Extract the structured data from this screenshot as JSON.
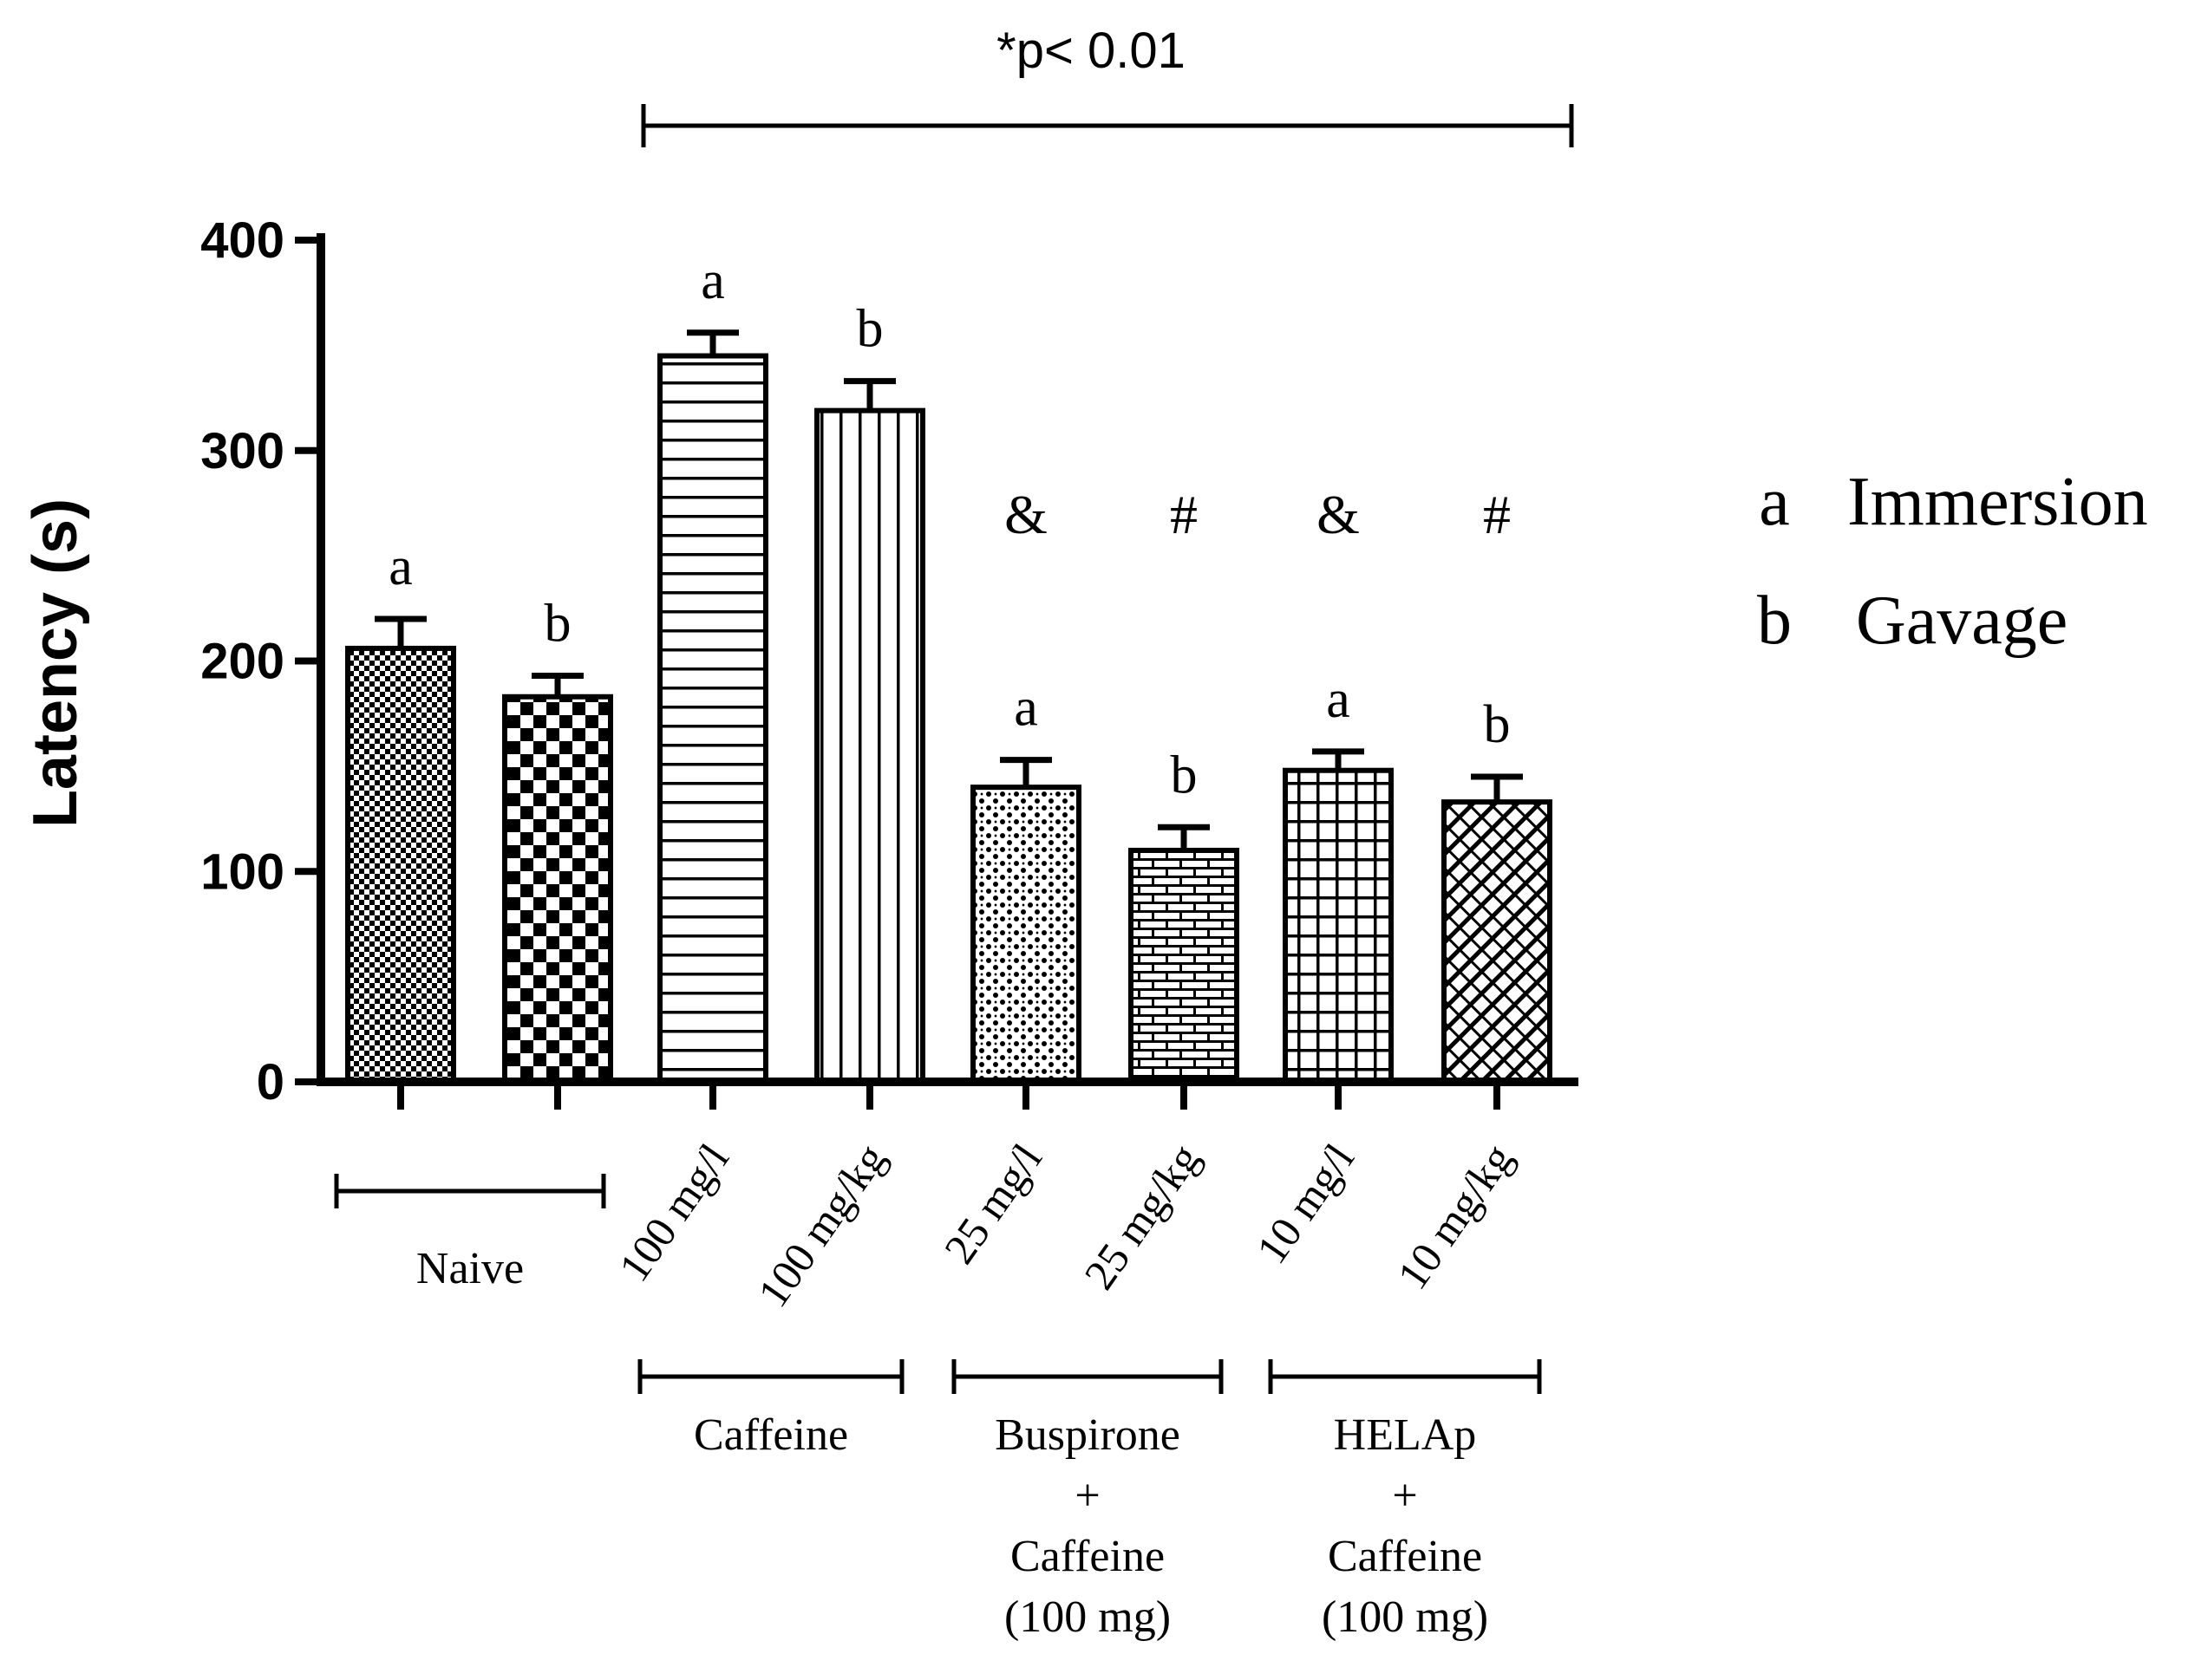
{
  "chart_data": {
    "type": "bar",
    "title": "",
    "ylabel": "Latency (s)",
    "xlabel": "",
    "ylim": [
      0,
      400
    ],
    "yticks": [
      "0",
      "100",
      "200",
      "300",
      "400"
    ],
    "bars": [
      {
        "tick": "",
        "group": "Naive",
        "route": "a",
        "value": 206,
        "error": 14,
        "sig": ""
      },
      {
        "tick": "",
        "group": "Naive",
        "route": "b",
        "value": 183,
        "error": 10,
        "sig": ""
      },
      {
        "tick": "100 mg/l",
        "group": "Caffeine",
        "route": "a",
        "value": 345,
        "error": 11,
        "sig": ""
      },
      {
        "tick": "100 mg/kg",
        "group": "Caffeine",
        "route": "b",
        "value": 319,
        "error": 14,
        "sig": ""
      },
      {
        "tick": "25 mg/l",
        "group": "Buspirone + Caffeine (100 mg)",
        "route": "a",
        "value": 140,
        "error": 13,
        "sig": "&"
      },
      {
        "tick": "25 mg/kg",
        "group": "Buspirone + Caffeine (100 mg)",
        "route": "b",
        "value": 110,
        "error": 11,
        "sig": "#"
      },
      {
        "tick": "10 mg/l",
        "group": "HELAp + Caffeine (100 mg)",
        "route": "a",
        "value": 148,
        "error": 9,
        "sig": "&"
      },
      {
        "tick": "10 mg/kg",
        "group": "HELAp + Caffeine (100 mg)",
        "route": "b",
        "value": 133,
        "error": 12,
        "sig": "#"
      }
    ],
    "groups": [
      {
        "label_lines": [
          "Naive"
        ]
      },
      {
        "label_lines": [
          "Caffeine"
        ]
      },
      {
        "label_lines": [
          "Buspirone",
          "+",
          "Caffeine",
          "(100 mg)"
        ]
      },
      {
        "label_lines": [
          "HELAp",
          "+",
          "Caffeine",
          "(100 mg)"
        ]
      }
    ],
    "significance": "*p< 0.01",
    "legend": [
      {
        "key": "a",
        "label": "Immersion"
      },
      {
        "key": "b",
        "label": "Gavage"
      }
    ],
    "legend_position": "right"
  }
}
